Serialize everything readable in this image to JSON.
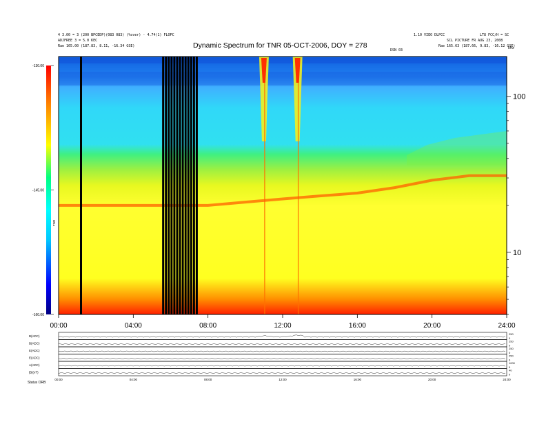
{
  "header": {
    "left_line1": "4 3.00 = 3 (200 BPCEDP)(083 083) (%over) - 4.74(1) FLOPC",
    "left_line2": "ADJFREE 3 = 5.0 KEC",
    "left_line3": "Rae  165.00 (187.83, 8.11, -16.34 GSE)",
    "right_line1": "1.10 VIEO DLPCC",
    "right_line2": "LT8 FCC/H = SC",
    "right_line3": "SCL PICTURE  FR AUG 23, 2008",
    "right_line4": "Rae  165.63 (187.66, 9.83, -16.12 GSE)",
    "right_mid": "DSN 03"
  },
  "chart_data": {
    "type": "heatmap",
    "title": "Dynamic Spectrum for TNR 05-OCT-2006, DOY = 278",
    "x_ticks": [
      "00:00",
      "04:00",
      "08:00",
      "12:00",
      "16:00",
      "20:00",
      "24:00"
    ],
    "xlim": [
      0,
      24
    ],
    "y_scale": "log",
    "y_ticks": [
      "10",
      "100"
    ],
    "y_unit": "kHz",
    "ylim": [
      4,
      180
    ],
    "colorbar": {
      "label": "TNR",
      "ticks": [
        "-130.00",
        "-145.00",
        "-160.00"
      ],
      "range": [
        -160,
        -130
      ],
      "colors": [
        "#000080",
        "#0000ff",
        "#00c8ff",
        "#00ffff",
        "#00ff80",
        "#ffff00",
        "#ff8000",
        "#ff0000"
      ]
    },
    "data_gaps_hours": [
      1.2,
      5.6,
      5.75,
      5.9,
      6.05,
      6.2,
      6.35,
      6.5,
      6.65,
      6.8,
      6.95,
      7.1,
      7.25,
      7.4
    ],
    "bursts": [
      {
        "hour": 11.0,
        "label": ""
      },
      {
        "hour": 12.8,
        "label": ""
      }
    ],
    "emission_band_khz": [
      [
        0,
        20
      ],
      [
        4,
        20
      ],
      [
        8,
        20
      ],
      [
        10,
        21
      ],
      [
        12,
        22
      ],
      [
        14,
        23
      ],
      [
        16,
        24
      ],
      [
        18,
        26
      ],
      [
        20,
        29
      ],
      [
        22,
        31
      ],
      [
        24,
        31
      ]
    ],
    "panels": [
      {
        "label": "B(ADC)",
        "ticks": [
          "250",
          "0"
        ]
      },
      {
        "label": "B(ADC)",
        "ticks": [
          "250",
          "0"
        ]
      },
      {
        "label": "E(ADC)",
        "ticks": [
          "250",
          "0"
        ]
      },
      {
        "label": "E(ADC)",
        "ticks": [
          "250",
          "0"
        ]
      },
      {
        "label": "A(ADC)",
        "ticks": [
          "1000",
          "0"
        ]
      },
      {
        "label": "|B|(nT)",
        "ticks": [
          "40",
          "0"
        ]
      }
    ],
    "panel_x_ticks": [
      "00:00",
      "04:00",
      "08:00",
      "12:00",
      "16:00",
      "20:00",
      "24:00"
    ],
    "footer": "Status  ORB"
  }
}
